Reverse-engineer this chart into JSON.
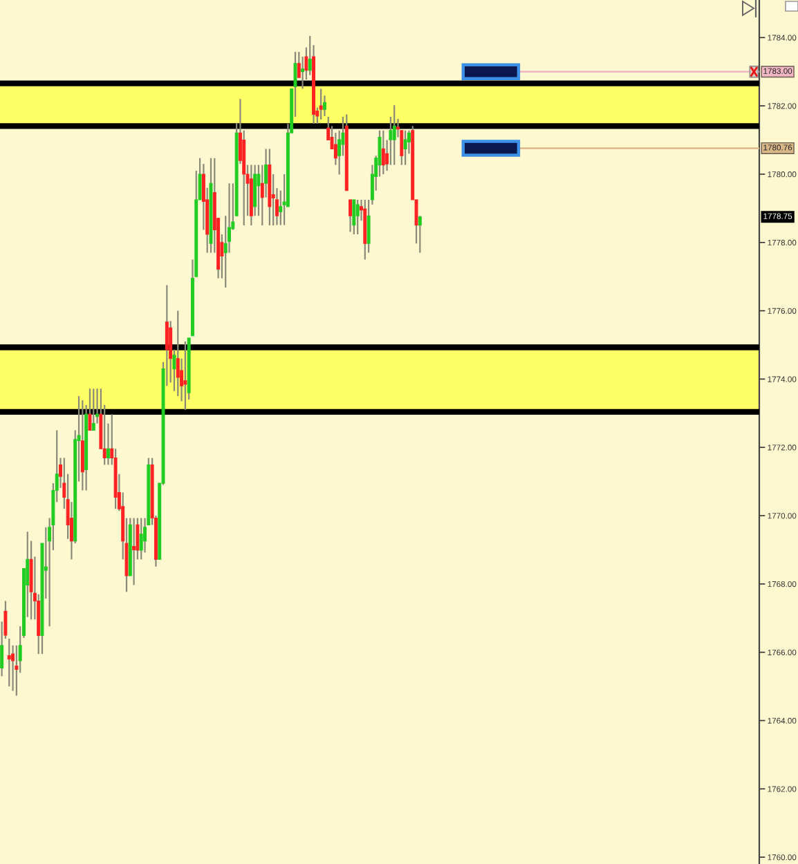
{
  "chart_data": {
    "type": "candlestick",
    "categories": [
      null,
      null,
      null,
      null,
      null,
      null,
      null,
      null,
      null,
      null,
      null,
      null,
      null,
      null,
      null,
      null,
      null,
      null,
      null,
      null,
      null,
      null,
      null,
      null,
      null,
      null,
      null,
      null,
      null,
      null,
      null,
      null,
      null,
      null,
      null,
      null,
      null,
      null,
      null,
      null,
      null,
      null,
      null,
      null,
      null,
      null,
      null,
      null,
      null,
      null,
      null,
      null,
      null,
      null,
      null,
      null,
      null,
      null,
      null,
      null,
      null,
      null,
      null,
      null,
      null,
      null,
      null,
      null,
      null,
      null,
      null,
      null,
      null,
      null,
      null,
      null,
      null,
      null,
      null,
      null,
      null,
      null,
      null,
      null,
      null,
      null,
      null,
      null,
      null,
      null,
      null,
      null,
      null,
      null,
      null,
      null,
      null,
      null,
      null,
      null,
      null,
      null,
      null,
      null,
      null,
      null,
      null,
      null,
      null,
      null,
      null,
      null,
      null,
      null,
      null,
      null,
      null,
      null,
      null,
      null,
      null,
      null,
      null,
      null,
      null,
      null,
      null,
      null,
      null,
      null,
      null,
      null,
      null,
      null,
      null,
      null,
      null,
      null,
      null,
      null,
      null,
      null,
      null,
      null,
      null,
      null,
      null,
      null,
      null,
      null,
      null,
      null,
      null,
      null,
      null,
      null,
      null,
      null,
      null,
      null,
      null,
      null,
      null,
      null,
      null,
      null,
      null,
      null,
      null,
      null,
      null,
      null,
      null,
      null,
      null,
      null,
      null,
      null,
      null,
      null,
      null,
      null,
      null,
      null,
      null,
      null,
      null,
      null,
      null,
      null,
      null,
      null,
      null,
      null,
      null,
      null,
      null,
      null,
      null,
      null,
      null,
      null,
      null,
      null,
      null,
      null,
      null
    ],
    "ohlc": [
      [
        1765.54,
        1766.9,
        1765.3,
        1766.2
      ],
      [
        1767.2,
        1767.5,
        1766.4,
        1766.5
      ],
      [
        1765.9,
        1766.4,
        1765.0,
        1765.8
      ],
      [
        1765.95,
        1766.2,
        1764.87,
        1765.75
      ],
      [
        1765.6,
        1766.2,
        1764.73,
        1765.5
      ],
      [
        1765.75,
        1766.76,
        1765.4,
        1766.2
      ],
      [
        1766.49,
        1768.45,
        1766.42,
        1768.45
      ],
      [
        1767.97,
        1769.53,
        1767.03,
        1768.72
      ],
      [
        1768.72,
        1769.26,
        1766.96,
        1767.77
      ],
      [
        1767.73,
        1768.8,
        1766.96,
        1767.5
      ],
      [
        1767.5,
        1767.7,
        1765.95,
        1766.49
      ],
      [
        1766.49,
        1769.19,
        1765.95,
        1769.19
      ],
      [
        1768.4,
        1769.66,
        1767.57,
        1768.5
      ],
      [
        1769.26,
        1769.93,
        1766.76,
        1769.66
      ],
      [
        1769.73,
        1770.95,
        1768.99,
        1770.74
      ],
      [
        1770.74,
        1772.5,
        1770.4,
        1771.22
      ],
      [
        1771.49,
        1771.69,
        1770.81,
        1771.15
      ],
      [
        1770.95,
        1771.69,
        1770.2,
        1770.54
      ],
      [
        1770.47,
        1771.22,
        1769.32,
        1769.73
      ],
      [
        1769.93,
        1770.4,
        1768.72,
        1769.26
      ],
      [
        1769.26,
        1772.5,
        1769.19,
        1772.23
      ],
      [
        1772.2,
        1773.5,
        1771.0,
        1772.35
      ],
      [
        1772.19,
        1773.38,
        1770.74,
        1771.28
      ],
      [
        1771.35,
        1773.24,
        1770.74,
        1772.97
      ],
      [
        1772.97,
        1773.72,
        1772.5,
        1772.5
      ],
      [
        1772.5,
        1773.72,
        1772.5,
        1772.7
      ],
      [
        1772.9,
        1773.72,
        1772.7,
        1772.97
      ],
      [
        1772.97,
        1773.72,
        1771.96,
        1771.96
      ],
      [
        1771.96,
        1773.24,
        1771.49,
        1771.69
      ],
      [
        1771.69,
        1772.7,
        1771.49,
        1771.96
      ],
      [
        1771.96,
        1772.97,
        1771.49,
        1771.69
      ],
      [
        1771.69,
        1771.96,
        1770.2,
        1770.54
      ],
      [
        1770.68,
        1771.22,
        1770.14,
        1770.2
      ],
      [
        1770.27,
        1770.68,
        1768.72,
        1769.26
      ],
      [
        1769.19,
        1769.93,
        1767.77,
        1768.24
      ],
      [
        1768.24,
        1769.93,
        1768.24,
        1769.73
      ],
      [
        1769.1,
        1769.93,
        1767.97,
        1769.0
      ],
      [
        1769.73,
        1769.93,
        1768.72,
        1768.99
      ],
      [
        1768.99,
        1769.93,
        1768.72,
        1769.46
      ],
      [
        1769.26,
        1769.93,
        1768.92,
        1769.66
      ],
      [
        1769.73,
        1771.69,
        1769.73,
        1771.49
      ],
      [
        1771.49,
        1771.69,
        1769.73,
        1769.93
      ],
      [
        1769.93,
        1770.0,
        1768.51,
        1768.72
      ],
      [
        1768.72,
        1770.95,
        1768.72,
        1770.95
      ],
      [
        1770.95,
        1774.5,
        1770.9,
        1774.3
      ],
      [
        1775.67,
        1776.75,
        1773.8,
        1774.86
      ],
      [
        1775.5,
        1775.7,
        1773.9,
        1774.6
      ],
      [
        1774.3,
        1774.86,
        1773.65,
        1774.7
      ],
      [
        1774.6,
        1776.0,
        1773.5,
        1774.05
      ],
      [
        1774.25,
        1774.6,
        1773.35,
        1773.8
      ],
      [
        1773.95,
        1775.1,
        1773.1,
        1773.85
      ],
      [
        1773.6,
        1775.2,
        1773.4,
        1775.2
      ],
      [
        1775.27,
        1777.5,
        1775.27,
        1776.95
      ],
      [
        1777.0,
        1780.1,
        1777.0,
        1779.25
      ],
      [
        1779.25,
        1780.47,
        1779.25,
        1780.0
      ],
      [
        1780.0,
        1780.3,
        1778.37,
        1779.2
      ],
      [
        1779.25,
        1779.6,
        1777.7,
        1778.24
      ],
      [
        1777.97,
        1780.47,
        1777.7,
        1779.73
      ],
      [
        1779.46,
        1780.47,
        1777.7,
        1778.37
      ],
      [
        1778.71,
        1778.71,
        1776.95,
        1777.22
      ],
      [
        1778.0,
        1778.24,
        1776.95,
        1777.6
      ],
      [
        1777.7,
        1778.78,
        1776.68,
        1777.97
      ],
      [
        1778.03,
        1779.73,
        1777.7,
        1778.44
      ],
      [
        1778.4,
        1779.73,
        1778.37,
        1778.6
      ],
      [
        1778.78,
        1781.5,
        1778.78,
        1781.21
      ],
      [
        1781.21,
        1782.2,
        1780.3,
        1780.4
      ],
      [
        1781.0,
        1781.28,
        1778.5,
        1780.0
      ],
      [
        1780.0,
        1780.27,
        1778.78,
        1779.73
      ],
      [
        1779.86,
        1780.27,
        1778.5,
        1778.78
      ],
      [
        1779.05,
        1780.27,
        1778.78,
        1780.0
      ],
      [
        1779.66,
        1780.27,
        1778.78,
        1780.0
      ],
      [
        1779.73,
        1780.27,
        1778.5,
        1779.32
      ],
      [
        1779.73,
        1780.74,
        1779.32,
        1780.27
      ],
      [
        1780.27,
        1780.74,
        1778.5,
        1779.05
      ],
      [
        1779.4,
        1780.0,
        1778.5,
        1779.3
      ],
      [
        1779.25,
        1779.59,
        1778.51,
        1778.78
      ],
      [
        1778.9,
        1779.52,
        1778.51,
        1779.05
      ],
      [
        1779.1,
        1780.0,
        1778.51,
        1779.19
      ],
      [
        1779.05,
        1781.48,
        1779.05,
        1781.21
      ],
      [
        1781.21,
        1782.5,
        1781.21,
        1782.5
      ],
      [
        1782.56,
        1783.58,
        1781.68,
        1783.24
      ],
      [
        1783.24,
        1783.58,
        1782.83,
        1782.83
      ],
      [
        1783.0,
        1783.44,
        1782.5,
        1783.08
      ],
      [
        1783.44,
        1783.71,
        1782.77,
        1783.04
      ],
      [
        1783.04,
        1784.05,
        1782.9,
        1783.37
      ],
      [
        1783.44,
        1783.78,
        1781.48,
        1781.75
      ],
      [
        1781.85,
        1781.95,
        1781.48,
        1781.7
      ],
      [
        1782.0,
        1782.5,
        1781.6,
        1781.9
      ],
      [
        1781.9,
        1782.3,
        1781.7,
        1782.1
      ],
      [
        1781.35,
        1781.68,
        1781.0,
        1781.0
      ],
      [
        1781.08,
        1781.41,
        1780.74,
        1780.74
      ],
      [
        1780.87,
        1781.21,
        1780.27,
        1780.47
      ],
      [
        1780.54,
        1781.28,
        1779.99,
        1781.01
      ],
      [
        1780.87,
        1781.68,
        1780.54,
        1781.21
      ],
      [
        1781.41,
        1781.75,
        1779.52,
        1779.52
      ],
      [
        1779.25,
        1779.25,
        1778.31,
        1778.78
      ],
      [
        1778.51,
        1779.25,
        1778.24,
        1779.25
      ],
      [
        1778.78,
        1779.25,
        1778.24,
        1779.11
      ],
      [
        1779.05,
        1779.25,
        1778.64,
        1778.95
      ],
      [
        1778.98,
        1779.25,
        1777.5,
        1777.97
      ],
      [
        1777.97,
        1779.25,
        1777.7,
        1778.78
      ],
      [
        1779.25,
        1780.27,
        1779.11,
        1780.0
      ],
      [
        1779.93,
        1780.54,
        1779.52,
        1780.47
      ],
      [
        1780.27,
        1781.28,
        1779.93,
        1781.08
      ],
      [
        1780.74,
        1781.28,
        1780.0,
        1780.27
      ],
      [
        1780.6,
        1781.0,
        1780.1,
        1780.3
      ],
      [
        1781.01,
        1781.68,
        1780.27,
        1781.28
      ],
      [
        1781.01,
        1782.02,
        1780.27,
        1781.41
      ],
      [
        1781.38,
        1781.62,
        1781.08,
        1781.32
      ],
      [
        1781.28,
        1781.28,
        1780.27,
        1780.54
      ],
      [
        1780.74,
        1781.28,
        1780.27,
        1781.01
      ],
      [
        1780.94,
        1781.28,
        1780.6,
        1781.21
      ],
      [
        1781.28,
        1781.41,
        1779.25,
        1779.25
      ],
      [
        1779.25,
        1779.25,
        1777.97,
        1778.51
      ],
      [
        1778.51,
        1778.78,
        1777.7,
        1778.75
      ],
      null,
      null,
      null,
      null,
      null,
      null,
      null,
      null,
      null,
      null,
      null,
      null,
      null,
      null,
      null,
      null,
      null,
      null,
      null,
      null,
      null,
      null,
      null,
      null,
      null,
      null,
      null,
      null,
      null,
      null,
      null,
      null,
      null,
      null,
      null,
      null,
      null,
      null,
      null,
      null,
      null,
      null,
      null,
      null,
      null,
      null,
      null,
      null,
      null,
      null,
      null,
      null,
      null,
      null,
      null,
      null,
      null,
      null,
      null,
      null,
      null,
      null,
      null,
      null,
      null,
      null,
      null,
      null,
      null,
      null,
      null,
      null,
      null,
      null,
      null,
      null,
      null,
      null,
      null,
      null,
      null,
      null,
      null,
      null,
      null,
      null,
      null,
      null,
      null,
      null,
      null,
      null
    ],
    "colors": [
      "#22cc22",
      "#ff2222",
      "#ff2222",
      "#ff2222",
      "#ff2222",
      "#22cc22",
      "#22cc22",
      "#22cc22",
      "#ff2222",
      "#ff2222",
      "#ff2222",
      "#22cc22",
      "#22cc22",
      "#22cc22",
      "#22cc22",
      "#22cc22",
      "#ff2222",
      "#ff2222",
      "#ff2222",
      "#ff2222",
      "#22cc22",
      "#22cc22",
      "#ff2222",
      "#22cc22",
      "#ff2222",
      "#22cc22",
      "#22cc22",
      "#ff2222",
      "#ff2222",
      "#22cc22",
      "#ff2222",
      "#ff2222",
      "#ff2222",
      "#ff2222",
      "#ff2222",
      "#22cc22",
      "#ff2222",
      "#ff2222",
      "#22cc22",
      "#22cc22",
      "#22cc22",
      "#ff2222",
      "#ff2222",
      "#22cc22",
      "#22cc22",
      "#ff2222",
      "#ff2222",
      "#22cc22",
      "#ff2222",
      "#ff2222",
      "#ff2222",
      "#22cc22",
      "#22cc22",
      "#22cc22",
      "#22cc22",
      "#ff2222",
      "#ff2222",
      "#22cc22",
      "#ff2222",
      "#ff2222",
      "#ff2222",
      "#22cc22",
      "#22cc22",
      "#22cc22",
      "#22cc22",
      "#ff2222",
      "#ff2222",
      "#ff2222",
      "#ff2222",
      "#22cc22",
      "#22cc22",
      "#ff2222",
      "#22cc22",
      "#ff2222",
      "#ff2222",
      "#ff2222",
      "#22cc22",
      "#22cc22",
      "#22cc22",
      "#22cc22",
      "#22cc22",
      "#ff2222",
      "#22cc22",
      "#ff2222",
      "#22cc22",
      "#ff2222",
      "#ff2222",
      "#ff2222",
      "#22cc22",
      "#ff2222",
      "#ff2222",
      "#ff2222",
      "#22cc22",
      "#22cc22",
      "#ff2222",
      "#ff2222",
      "#22cc22",
      "#22cc22",
      "#ff2222",
      "#ff2222",
      "#22cc22",
      "#22cc22",
      "#22cc22",
      "#22cc22",
      "#ff2222",
      "#ff2222",
      "#22cc22",
      "#22cc22",
      "#ff2222",
      "#ff2222",
      "#22cc22",
      "#22cc22",
      "#ff2222",
      "#ff2222",
      "#22cc22",
      null,
      null,
      null,
      null,
      null,
      null,
      null,
      null,
      null,
      null,
      null,
      null,
      null,
      null,
      null,
      null,
      null,
      null,
      null,
      null,
      null,
      null,
      null,
      null,
      null,
      null,
      null,
      null,
      null,
      null,
      null,
      null,
      null,
      null,
      null,
      null,
      null,
      null,
      null,
      null,
      null,
      null,
      null,
      null,
      null,
      null,
      null,
      null,
      null,
      null,
      null,
      null,
      null,
      null,
      null,
      null,
      null,
      null,
      null,
      null,
      null,
      null,
      null,
      null,
      null,
      null,
      null,
      null,
      null,
      null,
      null,
      null,
      null,
      null,
      null,
      null,
      null,
      null,
      null,
      null,
      null,
      null,
      null,
      null,
      null,
      null,
      null,
      null,
      null,
      null,
      null,
      null
    ],
    "ylim": [
      1759.8,
      1785.1
    ],
    "yticks": [
      {
        "value": 1760,
        "label": "1760.00"
      },
      {
        "value": 1762,
        "label": "1762.00"
      },
      {
        "value": 1764,
        "label": "1764.00"
      },
      {
        "value": 1766,
        "label": "1766.00"
      },
      {
        "value": 1768,
        "label": "1768.00"
      },
      {
        "value": 1770,
        "label": "1770.00"
      },
      {
        "value": 1772,
        "label": "1772.00"
      },
      {
        "value": 1774,
        "label": "1774.00"
      },
      {
        "value": 1776,
        "label": "1776.00"
      },
      {
        "value": 1778,
        "label": "1778.00"
      },
      {
        "value": 1780,
        "label": "1780.00"
      },
      {
        "value": 1782,
        "label": "1782.00"
      },
      {
        "value": 1784,
        "label": "1784.00"
      }
    ],
    "tick_labels": "y",
    "ref_lines": [
      {
        "axis": "y",
        "value": 1783.0,
        "label": "1783.00",
        "color": "#f2b6c4"
      },
      {
        "axis": "y",
        "value": 1782.66,
        "color": "#000000"
      },
      {
        "axis": "y",
        "value": 1781.41,
        "color": "#000000"
      },
      {
        "axis": "y",
        "value": 1780.76,
        "label": "1780.76",
        "color": "#d8b888"
      },
      {
        "axis": "y",
        "value": 1774.93,
        "color": "#000000"
      },
      {
        "axis": "y",
        "value": 1773.04,
        "color": "#000000"
      }
    ],
    "bands": [
      {
        "axis": "y",
        "from": 1773.04,
        "to": 1774.93,
        "color": "#ffff66"
      },
      {
        "axis": "y",
        "from": 1781.41,
        "to": 1782.66,
        "color": "#ffff66"
      }
    ],
    "annotations": [
      {
        "text": "1778.75",
        "y": 1778.75
      }
    ]
  }
}
